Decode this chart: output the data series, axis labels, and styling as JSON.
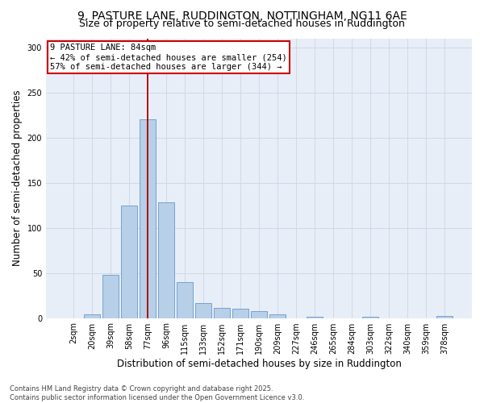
{
  "title1": "9, PASTURE LANE, RUDDINGTON, NOTTINGHAM, NG11 6AE",
  "title2": "Size of property relative to semi-detached houses in Ruddington",
  "xlabel": "Distribution of semi-detached houses by size in Ruddington",
  "ylabel": "Number of semi-detached properties",
  "categories": [
    "2sqm",
    "20sqm",
    "39sqm",
    "58sqm",
    "77sqm",
    "96sqm",
    "115sqm",
    "133sqm",
    "152sqm",
    "171sqm",
    "190sqm",
    "209sqm",
    "227sqm",
    "246sqm",
    "265sqm",
    "284sqm",
    "303sqm",
    "322sqm",
    "340sqm",
    "359sqm",
    "378sqm"
  ],
  "values": [
    0,
    4,
    48,
    125,
    220,
    128,
    40,
    17,
    11,
    10,
    8,
    4,
    0,
    1,
    0,
    0,
    1,
    0,
    0,
    0,
    2
  ],
  "bar_color": "#b8cfe8",
  "bar_edge_color": "#6699cc",
  "property_line_label": "9 PASTURE LANE: 84sqm",
  "annotation_smaller": "← 42% of semi-detached houses are smaller (254)",
  "annotation_larger": "57% of semi-detached houses are larger (344) →",
  "annotation_box_color": "#ffffff",
  "annotation_box_edge": "#cc0000",
  "vline_color": "#aa0000",
  "vline_index": 4,
  "ylim": [
    0,
    310
  ],
  "yticks": [
    0,
    50,
    100,
    150,
    200,
    250,
    300
  ],
  "grid_color": "#d0d8e8",
  "bg_color": "#e8eef7",
  "footer1": "Contains HM Land Registry data © Crown copyright and database right 2025.",
  "footer2": "Contains public sector information licensed under the Open Government Licence v3.0.",
  "title_fontsize": 10,
  "subtitle_fontsize": 9,
  "axis_label_fontsize": 8.5,
  "tick_fontsize": 7,
  "annot_fontsize": 7.5,
  "footer_fontsize": 6
}
